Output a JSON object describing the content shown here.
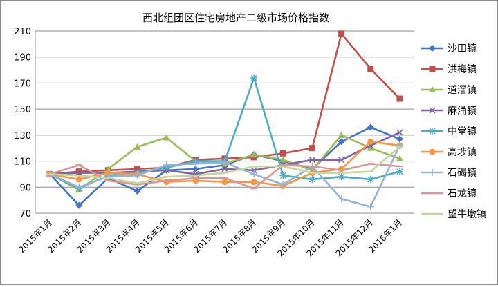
{
  "chart_data": {
    "type": "line",
    "title": "西北组团区住宅房地产二级市场价格指数",
    "xlabel": "",
    "ylabel": "",
    "categories": [
      "2015年1月",
      "2015年2月",
      "2015年3月",
      "2015年4月",
      "2015年5月",
      "2015年6月",
      "2015年7月",
      "2015年8月",
      "2015年9月",
      "2015年10月",
      "2015年11月",
      "2015年12月",
      "2016年1月"
    ],
    "ylim": [
      70,
      210
    ],
    "yticks": [
      70,
      90,
      110,
      130,
      150,
      170,
      190,
      210
    ],
    "grid": true,
    "legend_position": "right",
    "series": [
      {
        "name": "沙田镇",
        "color": "#4472C4",
        "marker": "diamond",
        "values": [
          100,
          76,
          97,
          87,
          103,
          104,
          107,
          115,
          110,
          104,
          125,
          136,
          127
        ]
      },
      {
        "name": "洪梅镇",
        "color": "#C0504D",
        "marker": "square",
        "values": [
          100,
          102,
          103,
          104,
          105,
          111,
          112,
          113,
          116,
          120,
          208,
          181,
          158
        ]
      },
      {
        "name": "道滘镇",
        "color": "#9BBB59",
        "marker": "triangle",
        "values": [
          100,
          88,
          104,
          121,
          128,
          110,
          108,
          115,
          111,
          103,
          130,
          120,
          112
        ]
      },
      {
        "name": "麻涌镇",
        "color": "#8064A2",
        "marker": "x",
        "values": [
          100,
          101,
          101,
          102,
          103,
          100,
          104,
          103,
          107,
          111,
          111,
          122,
          132
        ]
      },
      {
        "name": "中堂镇",
        "color": "#4BACC6",
        "marker": "star",
        "values": [
          100,
          89,
          99,
          101,
          105,
          110,
          110,
          174,
          99,
          96,
          98,
          96,
          102
        ]
      },
      {
        "name": "高埗镇",
        "color": "#F79646",
        "marker": "circle",
        "values": [
          100,
          96,
          101,
          100,
          94,
          95,
          94,
          94,
          91,
          101,
          104,
          125,
          122
        ]
      },
      {
        "name": "石碣镇",
        "color": "#95B3D7",
        "marker": "plus",
        "values": [
          100,
          90,
          98,
          99,
          107,
          108,
          109,
          100,
          92,
          106,
          81,
          75,
          122
        ]
      },
      {
        "name": "石龙镇",
        "color": "#D99694",
        "marker": "dash",
        "values": [
          100,
          107,
          95,
          92,
          95,
          97,
          97,
          89,
          107,
          106,
          103,
          108,
          106
        ]
      },
      {
        "name": "望牛墩镇",
        "color": "#C3D69B",
        "marker": "dash",
        "values": [
          100,
          99,
          97,
          93,
          98,
          99,
          101,
          106,
          106,
          101,
          101,
          102,
          121
        ]
      }
    ]
  }
}
